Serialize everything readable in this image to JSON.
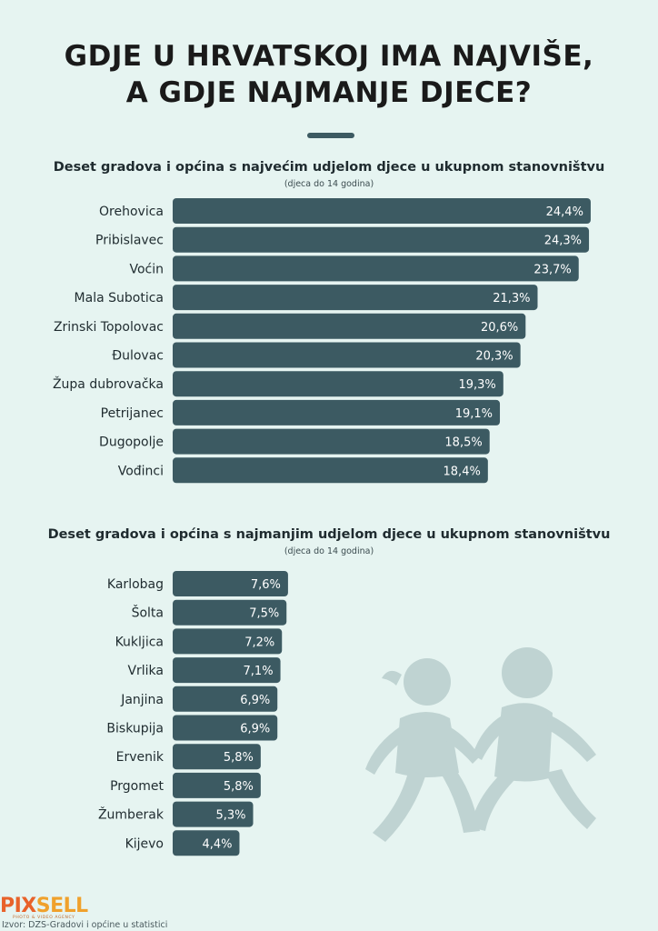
{
  "title_lines": [
    "GDJE U HRVATSKOJ IMA NAJVIŠE,",
    "A GDJE NAJMANJE DJECE?"
  ],
  "chart_data": [
    {
      "type": "bar",
      "orientation": "horizontal",
      "title": "Deset gradova i općina s najvećim udjelom djece u ukupnom stanovništvu",
      "subtitle": "(djeca do 14 godina)",
      "categories": [
        "Orehovica",
        "Pribislavec",
        "Voćin",
        "Mala Subotica",
        "Zrinski Topolovac",
        "Đulovac",
        "Župa dubrovačka",
        "Petrijanec",
        "Dugopolje",
        "Vođinci"
      ],
      "values": [
        24.4,
        24.3,
        23.7,
        21.3,
        20.6,
        20.3,
        19.3,
        19.1,
        18.5,
        18.4
      ],
      "value_labels": [
        "24,4%",
        "24,3%",
        "23,7%",
        "21,3%",
        "20,6%",
        "20,3%",
        "19,3%",
        "19,1%",
        "18,5%",
        "18,4%"
      ],
      "grid": false,
      "legend": "none"
    },
    {
      "type": "bar",
      "orientation": "horizontal",
      "title": "Deset gradova i općina s najmanjim udjelom djece u ukupnom stanovništvu",
      "subtitle": "(djeca do 14 godina)",
      "categories": [
        "Karlobag",
        "Šolta",
        "Kukljica",
        "Vrlika",
        "Janjina",
        "Biskupija",
        "Ervenik",
        "Prgomet",
        "Žumberak",
        "Kijevo"
      ],
      "values": [
        7.6,
        7.5,
        7.2,
        7.1,
        6.9,
        6.9,
        5.8,
        5.8,
        5.3,
        4.4
      ],
      "value_labels": [
        "7,6%",
        "7,5%",
        "7,2%",
        "7,1%",
        "6,9%",
        "6,9%",
        "5,8%",
        "5,8%",
        "5,3%",
        "4,4%"
      ],
      "grid": false,
      "legend": "none"
    }
  ],
  "colors": {
    "bar": "#3c5a62",
    "background": "#e6f4f1",
    "logo_primary": "#e8622a",
    "logo_secondary": "#f0a12c",
    "illustration": "#bfd3d2"
  },
  "logo": {
    "part1": "PIX",
    "part2": "SELL",
    "tagline": "PHOTO & VIDEO AGENCY"
  },
  "source": "Izvor: DZS-Gradovi i općine u statistici",
  "illustration": "children-silhouette-icon"
}
